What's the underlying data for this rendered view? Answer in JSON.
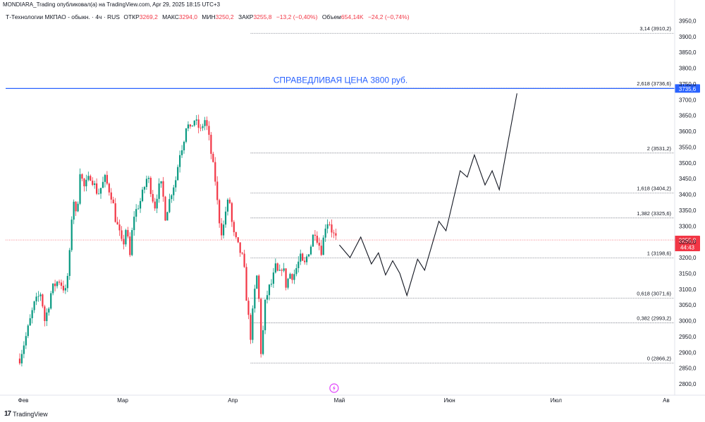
{
  "header": {
    "caption": "MONDIARA_Trading опубликовал(а) на TradingView.com, Apr 29, 2025 18:15 UTC+3",
    "symbol": "Т-Технологии МКПАО - обыкн. · 4ч · RUS",
    "open_label": "ОТКР",
    "open_value": "3269,2",
    "high_label": "МАКС",
    "high_value": "3294,0",
    "low_label": "МИН",
    "low_value": "3250,2",
    "close_label": "ЗАКР",
    "close_value": "3255,8",
    "change": "−13,2 (−0,40%)",
    "volume_label": "Объем",
    "volume_value": "654,14K",
    "volume_change": "−24,2 (−0,74%)"
  },
  "footer": {
    "brand": "TradingView"
  },
  "colors": {
    "up": "#089981",
    "down": "#f23645",
    "fib": "#787b86",
    "fair_price": "#2962ff",
    "projection": "#131722"
  },
  "chart_data": {
    "type": "candlestick",
    "y_axis": {
      "min": 2780,
      "max": 3990,
      "ticks": [
        2800,
        2850,
        2900,
        2950,
        3000,
        3050,
        3100,
        3150,
        3200,
        3250,
        3300,
        3350,
        3400,
        3450,
        3500,
        3550,
        3600,
        3650,
        3700,
        3750,
        3800,
        3850,
        3900,
        3950
      ],
      "tick_labels": [
        "2800,0",
        "2850,0",
        "2900,0",
        "2950,0",
        "3000,0",
        "3050,0",
        "3100,0",
        "3150,0",
        "3200,0",
        "3250,0",
        "3300,0",
        "3350,0",
        "3400,0",
        "3450,0",
        "3500,0",
        "3550,0",
        "3600,0",
        "3650,0",
        "3700,0",
        "3750,0",
        "3800,0",
        "3850,0",
        "3900,0",
        "3950,0"
      ]
    },
    "x_axis": {
      "labels": [
        "Фев",
        "Мар",
        "Апр",
        "Май",
        "Июн",
        "Июл",
        "Ав"
      ],
      "label_days": [
        0,
        28,
        59,
        89,
        120,
        150,
        181
      ],
      "max_day": 182
    },
    "fair_price": {
      "label": "СПРАВЕДЛИВАЯ ЦЕНА 3800 руб.",
      "value": 3735.6,
      "tag": "3735,6"
    },
    "last_price": {
      "value": 3255.8,
      "tag": "3255,8",
      "countdown": "44:43"
    },
    "fib_levels": [
      {
        "ratio": "0",
        "value": 2866.2,
        "label": "0 (2866,2)"
      },
      {
        "ratio": "0,382",
        "value": 2993.2,
        "label": "0,382 (2993,2)"
      },
      {
        "ratio": "0,618",
        "value": 3071.6,
        "label": "0,618 (3071,6)"
      },
      {
        "ratio": "1",
        "value": 3198.6,
        "label": "1 (3198,6)"
      },
      {
        "ratio": "1,382",
        "value": 3325.6,
        "label": "1,382 (3325,6)"
      },
      {
        "ratio": "1,618",
        "value": 3404.2,
        "label": "1,618 (3404,2)"
      },
      {
        "ratio": "2",
        "value": 3531.2,
        "label": "2 (3531,2)"
      },
      {
        "ratio": "2,618",
        "value": 3736.6,
        "label": "2,618 (3736,6)"
      },
      {
        "ratio": "3,14",
        "value": 3910.2,
        "label": "3,14 (3910,2)"
      }
    ],
    "fib_start_day": 64,
    "price_path": [
      [
        -1,
        2880
      ],
      [
        1,
        2960
      ],
      [
        3,
        3050
      ],
      [
        5,
        3090
      ],
      [
        6,
        3000
      ],
      [
        7,
        3040
      ],
      [
        8,
        3100
      ],
      [
        10,
        3130
      ],
      [
        12,
        3090
      ],
      [
        13,
        3200
      ],
      [
        14,
        3400
      ],
      [
        15,
        3320
      ],
      [
        16,
        3480
      ],
      [
        17,
        3420
      ],
      [
        19,
        3460
      ],
      [
        21,
        3400
      ],
      [
        23,
        3450
      ],
      [
        25,
        3390
      ],
      [
        26,
        3320
      ],
      [
        27,
        3280
      ],
      [
        28,
        3230
      ],
      [
        29,
        3300
      ],
      [
        30,
        3200
      ],
      [
        31,
        3330
      ],
      [
        33,
        3380
      ],
      [
        35,
        3460
      ],
      [
        37,
        3360
      ],
      [
        38,
        3420
      ],
      [
        39,
        3430
      ],
      [
        40,
        3330
      ],
      [
        42,
        3420
      ],
      [
        43,
        3450
      ],
      [
        44,
        3530
      ],
      [
        45,
        3560
      ],
      [
        46,
        3630
      ],
      [
        47,
        3600
      ],
      [
        48,
        3640
      ],
      [
        50,
        3600
      ],
      [
        51,
        3640
      ],
      [
        52,
        3600
      ],
      [
        53,
        3520
      ],
      [
        54,
        3450
      ],
      [
        55,
        3330
      ],
      [
        56,
        3270
      ],
      [
        57,
        3350
      ],
      [
        58,
        3390
      ],
      [
        59,
        3280
      ],
      [
        60,
        3250
      ],
      [
        62,
        3190
      ],
      [
        63,
        3050
      ],
      [
        64,
        2950
      ],
      [
        65,
        3080
      ],
      [
        66,
        3160
      ],
      [
        67,
        2880
      ],
      [
        68,
        3050
      ],
      [
        69,
        3100
      ],
      [
        70,
        3120
      ],
      [
        71,
        3170
      ],
      [
        72,
        3140
      ],
      [
        73,
        3180
      ],
      [
        74,
        3110
      ],
      [
        75,
        3150
      ],
      [
        76,
        3140
      ],
      [
        77,
        3170
      ],
      [
        78,
        3200
      ],
      [
        79,
        3170
      ],
      [
        80,
        3210
      ],
      [
        81,
        3240
      ],
      [
        82,
        3290
      ],
      [
        83,
        3250
      ],
      [
        84,
        3220
      ],
      [
        85,
        3300
      ],
      [
        86,
        3320
      ],
      [
        87,
        3280
      ],
      [
        88,
        3260
      ]
    ],
    "projection": [
      [
        89,
        3240
      ],
      [
        92,
        3200
      ],
      [
        95,
        3265
      ],
      [
        98,
        3180
      ],
      [
        100,
        3215
      ],
      [
        102,
        3145
      ],
      [
        104,
        3190
      ],
      [
        106,
        3150
      ],
      [
        108,
        3080
      ],
      [
        111,
        3195
      ],
      [
        113,
        3160
      ],
      [
        117,
        3315
      ],
      [
        119,
        3285
      ],
      [
        123,
        3475
      ],
      [
        125,
        3455
      ],
      [
        127,
        3525
      ],
      [
        130,
        3430
      ],
      [
        132,
        3475
      ],
      [
        134,
        3415
      ],
      [
        139,
        3720
      ]
    ],
    "candle_count": 153
  }
}
